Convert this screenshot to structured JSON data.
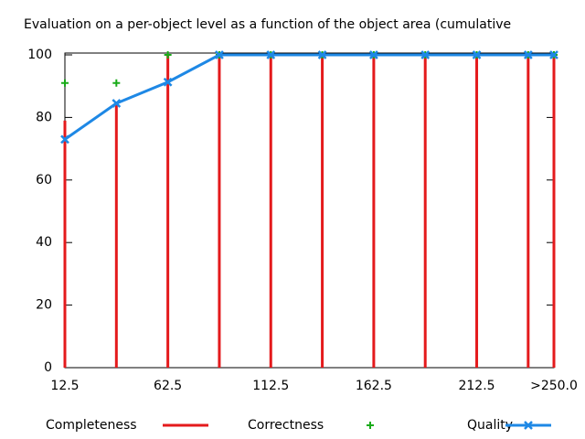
{
  "chart_data": {
    "type": "line",
    "title": "Evaluation on a per-object level as a function of the object area (cumulative",
    "x": [
      12.5,
      37.5,
      62.5,
      87.5,
      112.5,
      137.5,
      162.5,
      187.5,
      212.5,
      237.5,
      250
    ],
    "xlim": [
      12.5,
      250
    ],
    "xticks": [
      12.5,
      62.5,
      112.5,
      162.5,
      212.5,
      {
        "value": 250,
        "label": ">250.0"
      }
    ],
    "ylim": [
      0,
      100
    ],
    "yticks": [
      0,
      20,
      40,
      60,
      80,
      100
    ],
    "series": [
      {
        "name": "Completeness",
        "color": "#e41a1c",
        "style": "impulses",
        "values": [
          79,
          85,
          100,
          100,
          100,
          100,
          100,
          100,
          100,
          100,
          100
        ]
      },
      {
        "name": "Correctness",
        "color": "#1aab1a",
        "style": "points",
        "values": [
          91,
          91,
          100,
          100,
          100,
          100,
          100,
          100,
          100,
          100,
          100
        ]
      },
      {
        "name": "Quality",
        "color": "#1e88e5",
        "style": "linespoints",
        "values": [
          73,
          84.5,
          91.3,
          100,
          100,
          100,
          100,
          100,
          100,
          100,
          100
        ]
      }
    ]
  }
}
